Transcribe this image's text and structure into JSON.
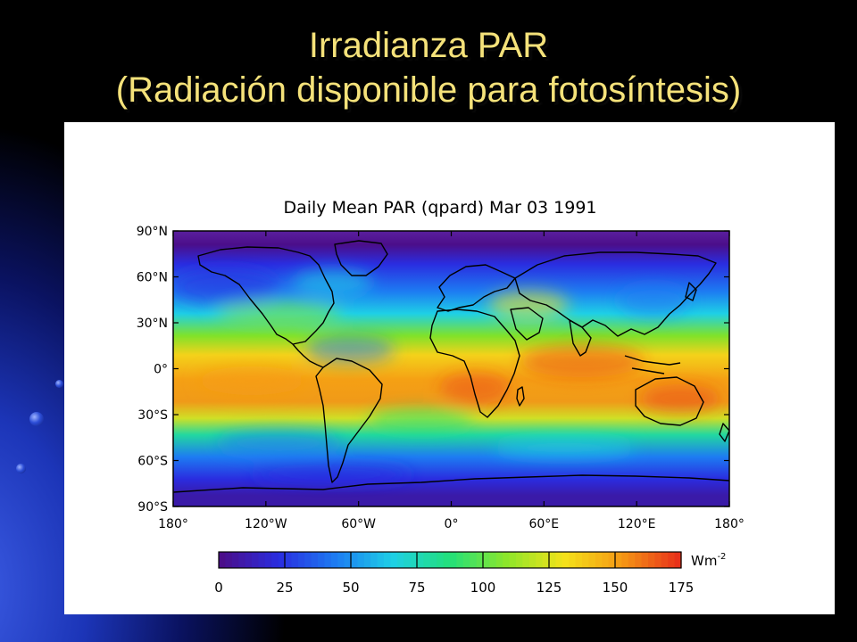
{
  "slide": {
    "title_line1": "Irradianza PAR",
    "title_line2": "(Radiación disponible para fotosíntesis)"
  },
  "map": {
    "title": "Daily Mean PAR (qpard)  Mar 03 1991",
    "lat_labels": [
      "90°N",
      "60°N",
      "30°N",
      "0°",
      "30°S",
      "60°S",
      "90°S"
    ],
    "lon_labels": [
      "180°",
      "120°W",
      "60°W",
      "0°",
      "60°E",
      "120°E",
      "180°"
    ],
    "colorbar": {
      "unit": "Wm",
      "unit_exponent": "-2",
      "tick_labels": [
        "0",
        "25",
        "50",
        "75",
        "100",
        "125",
        "150",
        "175"
      ],
      "min": 0,
      "max": 175,
      "colors": [
        "#4b0e8a",
        "#2a2de0",
        "#1d7cf2",
        "#1ed0e6",
        "#22e07a",
        "#8ee62a",
        "#f4e21a",
        "#f59a14",
        "#e8321a"
      ]
    }
  },
  "colors": {
    "title_text": "#f5e27a",
    "slide_background": "#000000",
    "accent_blue": "#1c35b8"
  }
}
